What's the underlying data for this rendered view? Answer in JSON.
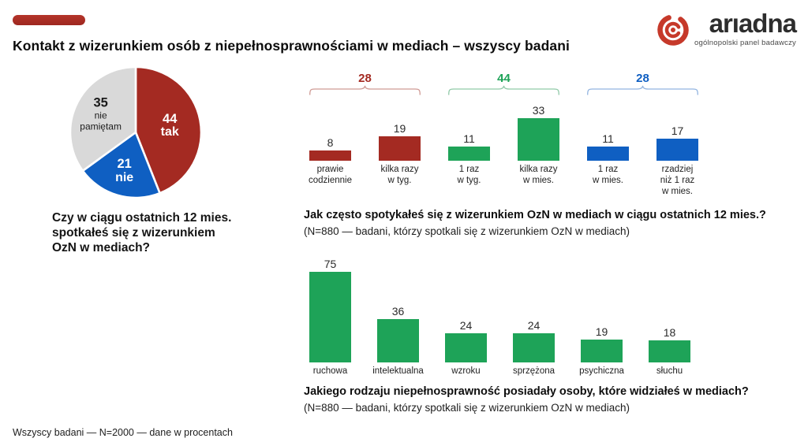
{
  "page": {
    "title": "Kontakt z wizerunkiem osób z niepełnosprawnościami w mediach – wszyscy badani",
    "footer": "Wszyscy badani — N=2000 — dane w procentach"
  },
  "logo": {
    "name": "arıadna",
    "subtitle": "ogólnopolski panel badawczy",
    "icon_color": "#c6392a"
  },
  "colors": {
    "red": "#a42a22",
    "green": "#1ea358",
    "blue": "#0f5fc2",
    "gray": "#d9d9d9"
  },
  "chart_data": [
    {
      "type": "pie",
      "question_lines": [
        "Czy w ciągu ostatnich 12 mies.",
        "spotkałeś się z wizerunkiem",
        "OzN w mediach?"
      ],
      "slices": [
        {
          "value": 44,
          "label_lines": [
            "tak"
          ],
          "color": "#a42a22",
          "text_color": "#ffffff"
        },
        {
          "value": 21,
          "label_lines": [
            "nie"
          ],
          "color": "#0f5fc2",
          "text_color": "#ffffff"
        },
        {
          "value": 35,
          "label_lines": [
            "nie",
            "pamiętam"
          ],
          "color": "#d9d9d9",
          "text_color": "#1a1a1a"
        }
      ]
    },
    {
      "type": "bar",
      "title": "Jak często spotykałeś się z wizerunkiem OzN w mediach w ciągu ostatnich 12 mies.?",
      "subtitle": "(N=880 — badani, którzy spotkali się z wizerunkiem OzN w mediach)",
      "ylim": [
        0,
        33
      ],
      "groups": [
        {
          "total": 28,
          "color": "#a42a22",
          "bracket_color": "#cf9a94",
          "bars": [
            {
              "value": 8,
              "label_lines": [
                "prawie",
                "codziennie"
              ]
            },
            {
              "value": 19,
              "label_lines": [
                "kilka razy",
                "w tyg."
              ]
            }
          ]
        },
        {
          "total": 44,
          "color": "#1ea358",
          "bracket_color": "#90c9a8",
          "bars": [
            {
              "value": 11,
              "label_lines": [
                "1 raz",
                "w tyg."
              ]
            },
            {
              "value": 33,
              "label_lines": [
                "kilka razy",
                "w mies."
              ]
            }
          ]
        },
        {
          "total": 28,
          "color": "#0f5fc2",
          "bracket_color": "#92b4e0",
          "bars": [
            {
              "value": 11,
              "label_lines": [
                "1 raz",
                "w mies."
              ]
            },
            {
              "value": 17,
              "label_lines": [
                "rzadziej",
                "niż 1 raz",
                "w mies."
              ]
            }
          ]
        }
      ]
    },
    {
      "type": "bar",
      "title": "Jakiego rodzaju niepełnosprawność posiadały osoby, które widziałeś w mediach?",
      "subtitle": "(N=880 — badani, którzy spotkali się z wizerunkiem OzN w mediach)",
      "ylim": [
        0,
        75
      ],
      "color": "#1ea358",
      "categories": [
        "ruchowa",
        "intelektualna",
        "wzroku",
        "sprzężona",
        "psychiczna",
        "słuchu"
      ],
      "values": [
        75,
        36,
        24,
        24,
        19,
        18
      ]
    }
  ]
}
